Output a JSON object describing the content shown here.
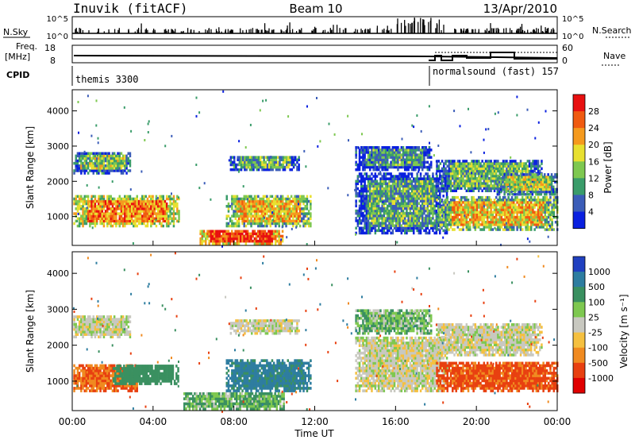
{
  "header": {
    "station": "Inuvik (fitACF)",
    "beam": "Beam 10",
    "date": "13/Apr/2010"
  },
  "side_panels": {
    "nsky_label": "N.Sky",
    "nsky_ticks": [
      "10^5",
      "10^0"
    ],
    "nsearch_label": "N.Search",
    "freq_label_1": "Freq.",
    "freq_label_2": "[MHz]",
    "freq_ticks": [
      "18",
      "8"
    ],
    "nave_label": "Nave",
    "nave_ticks": [
      "60",
      "0"
    ],
    "cpid_label": "CPID"
  },
  "cpid_modes": [
    {
      "name": "themis 3300",
      "start_hour": 0
    },
    {
      "name": "normalsound (fast) 157",
      "start_hour": 18
    }
  ],
  "chart_data": [
    {
      "type": "heatmap",
      "id": "power",
      "ylabel": "Slant Range [km]",
      "ylim": [
        180,
        4600
      ],
      "y_ticks": [
        1000,
        2000,
        3000,
        4000
      ],
      "xlim": [
        0,
        24
      ],
      "colorbar_label": "Power [dB]",
      "colorbar_ticks": [
        "28",
        "24",
        "20",
        "16",
        "12",
        "8",
        "4"
      ],
      "colors": [
        "#e81010",
        "#f05a10",
        "#f59a1e",
        "#e8e030",
        "#7ec850",
        "#3a9c6a",
        "#3b5db8",
        "#0a20e0"
      ],
      "bands": [
        {
          "x0": 0.05,
          "x1": 5.3,
          "r0": 700,
          "r1": 1550,
          "v": 22
        },
        {
          "x0": 0.05,
          "x1": 2.9,
          "r0": 2200,
          "r1": 2800,
          "v": 12
        },
        {
          "x0": 6.3,
          "x1": 10.4,
          "r0": 200,
          "r1": 600,
          "v": 25
        },
        {
          "x0": 7.6,
          "x1": 11.8,
          "r0": 700,
          "r1": 1550,
          "v": 18
        },
        {
          "x0": 7.8,
          "x1": 11.2,
          "r0": 2300,
          "r1": 2700,
          "v": 10
        },
        {
          "x0": 14.0,
          "x1": 18.5,
          "r0": 500,
          "r1": 2200,
          "v": 9
        },
        {
          "x0": 14.0,
          "x1": 17.8,
          "r0": 2300,
          "r1": 3000,
          "v": 8
        },
        {
          "x0": 18.0,
          "x1": 24.0,
          "r0": 600,
          "r1": 1550,
          "v": 18
        },
        {
          "x0": 18.0,
          "x1": 23.2,
          "r0": 1700,
          "r1": 2600,
          "v": 11
        },
        {
          "x0": 21.0,
          "x1": 24.0,
          "r0": 1600,
          "r1": 2200,
          "v": 15
        }
      ]
    },
    {
      "type": "heatmap",
      "id": "velocity",
      "ylabel": "Slant Range [km]",
      "ylim": [
        180,
        4600
      ],
      "y_ticks": [
        1000,
        2000,
        3000,
        4000
      ],
      "xlim": [
        0,
        24
      ],
      "colorbar_label": "Velocity [m s⁻¹]",
      "colorbar_ticks": [
        "1000",
        "500",
        "100",
        "25",
        "-25",
        "-100",
        "-500",
        "-1000"
      ],
      "colors": [
        "#2040c0",
        "#2e7da0",
        "#3a9060",
        "#7ec850",
        "#c8c8c0",
        "#f5c040",
        "#f08a20",
        "#e84010",
        "#e00000"
      ],
      "bands": [
        {
          "x0": 0.05,
          "x1": 3.2,
          "r0": 700,
          "r1": 1450,
          "v": -300
        },
        {
          "x0": 2.0,
          "x1": 5.2,
          "r0": 900,
          "r1": 1450,
          "v": 120
        },
        {
          "x0": 0.05,
          "x1": 2.9,
          "r0": 2200,
          "r1": 2800,
          "v": 0
        },
        {
          "x0": 5.5,
          "x1": 10.5,
          "r0": 200,
          "r1": 650,
          "v": 60
        },
        {
          "x0": 7.6,
          "x1": 11.8,
          "r0": 700,
          "r1": 1550,
          "v": 400
        },
        {
          "x0": 7.8,
          "x1": 11.2,
          "r0": 2300,
          "r1": 2700,
          "v": 0
        },
        {
          "x0": 14.0,
          "x1": 18.5,
          "r0": 700,
          "r1": 2200,
          "v": 0
        },
        {
          "x0": 14.0,
          "x1": 17.8,
          "r0": 2300,
          "r1": 3000,
          "v": 50
        },
        {
          "x0": 18.0,
          "x1": 24.0,
          "r0": 700,
          "r1": 1500,
          "v": -400
        },
        {
          "x0": 18.0,
          "x1": 23.2,
          "r0": 1700,
          "r1": 2600,
          "v": 0
        }
      ]
    }
  ],
  "x_axis": {
    "ticks": [
      "00:00",
      "04:00",
      "08:00",
      "12:00",
      "16:00",
      "20:00",
      "00:00"
    ],
    "label": "Time UT"
  }
}
